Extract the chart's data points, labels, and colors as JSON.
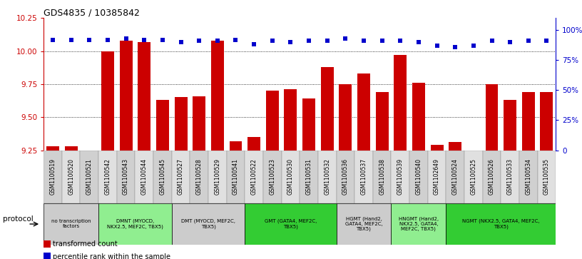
{
  "title": "GDS4835 / 10385842",
  "samples": [
    "GSM1100519",
    "GSM1100520",
    "GSM1100521",
    "GSM1100542",
    "GSM1100543",
    "GSM1100544",
    "GSM1100545",
    "GSM1100527",
    "GSM1100528",
    "GSM1100529",
    "GSM1100541",
    "GSM1100522",
    "GSM1100523",
    "GSM1100530",
    "GSM1100531",
    "GSM1100532",
    "GSM1100536",
    "GSM1100537",
    "GSM1100538",
    "GSM1100539",
    "GSM1100540",
    "GSM1102649",
    "GSM1100524",
    "GSM1100525",
    "GSM1100526",
    "GSM1100533",
    "GSM1100534",
    "GSM1100535"
  ],
  "bar_values": [
    9.28,
    9.28,
    9.24,
    10.0,
    10.08,
    10.07,
    9.63,
    9.65,
    9.66,
    10.08,
    9.32,
    9.35,
    9.7,
    9.71,
    9.64,
    9.88,
    9.75,
    9.83,
    9.69,
    9.97,
    9.76,
    9.29,
    9.31,
    9.25,
    9.75,
    9.63,
    9.69,
    9.69
  ],
  "dot_pct": [
    92,
    92,
    92,
    92,
    93,
    92,
    92,
    90,
    91,
    91,
    92,
    88,
    91,
    90,
    91,
    91,
    93,
    91,
    91,
    91,
    90,
    87,
    86,
    87,
    91,
    90,
    91,
    91
  ],
  "bar_color": "#cc0000",
  "dot_color": "#0000cc",
  "ylim_left": [
    9.25,
    10.25
  ],
  "yticks_left": [
    9.25,
    9.5,
    9.75,
    10.0,
    10.25
  ],
  "yticks_right": [
    0,
    25,
    50,
    75,
    100
  ],
  "ylim_right": [
    0,
    110
  ],
  "grid_lines": [
    9.5,
    9.75,
    10.0
  ],
  "protocols": [
    {
      "label": "no transcription\nfactors",
      "start": 0,
      "end": 3,
      "color": "#cccccc"
    },
    {
      "label": "DMNT (MYOCD,\nNKX2.5, MEF2C, TBX5)",
      "start": 3,
      "end": 7,
      "color": "#90ee90"
    },
    {
      "label": "DMT (MYOCD, MEF2C,\nTBX5)",
      "start": 7,
      "end": 11,
      "color": "#cccccc"
    },
    {
      "label": "GMT (GATA4, MEF2C,\nTBX5)",
      "start": 11,
      "end": 16,
      "color": "#33cc33"
    },
    {
      "label": "HGMT (Hand2,\nGATA4, MEF2C,\nTBX5)",
      "start": 16,
      "end": 19,
      "color": "#cccccc"
    },
    {
      "label": "HNGMT (Hand2,\nNKX2.5, GATA4,\nMEF2C, TBX5)",
      "start": 19,
      "end": 22,
      "color": "#90ee90"
    },
    {
      "label": "NGMT (NKX2.5, GATA4, MEF2C,\nTBX5)",
      "start": 22,
      "end": 28,
      "color": "#33cc33"
    }
  ],
  "legend_items": [
    {
      "label": "transformed count",
      "color": "#cc0000"
    },
    {
      "label": "percentile rank within the sample",
      "color": "#0000cc"
    }
  ],
  "protocol_label": "protocol",
  "bg_color": "#ffffff",
  "cell_colors": [
    "#d0d0d0",
    "#e0e0e0"
  ]
}
